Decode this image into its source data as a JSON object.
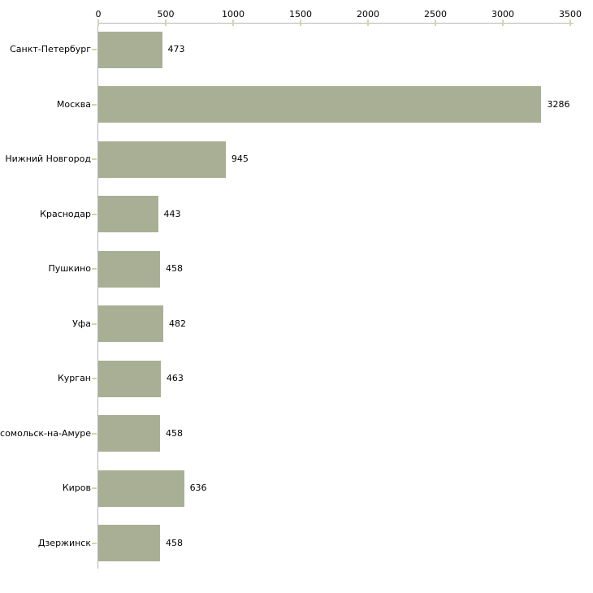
{
  "chart_data": {
    "type": "bar",
    "orientation": "horizontal",
    "title": "",
    "xlabel": "",
    "ylabel": "",
    "grid": false,
    "legend": false,
    "categories": [
      "Санкт-Петербург",
      "Москва",
      "Нижний Новгород",
      "Краснодар",
      "Пушкино",
      "Уфа",
      "Курган",
      "мсомольск-на-Амуре",
      "Киров",
      "Дзержинск"
    ],
    "values": [
      473,
      3286,
      945,
      443,
      458,
      482,
      463,
      458,
      636,
      458
    ],
    "x_ticks": [
      0,
      500,
      1000,
      1500,
      2000,
      2500,
      3000,
      3500
    ],
    "xlim": [
      0,
      3500
    ],
    "colors": {
      "bar_fill": "#a9af94",
      "axis_line": "#b6b6b6",
      "tick_mark": "#d4d5a8",
      "text": "#000000",
      "background": "#ffffff"
    }
  }
}
